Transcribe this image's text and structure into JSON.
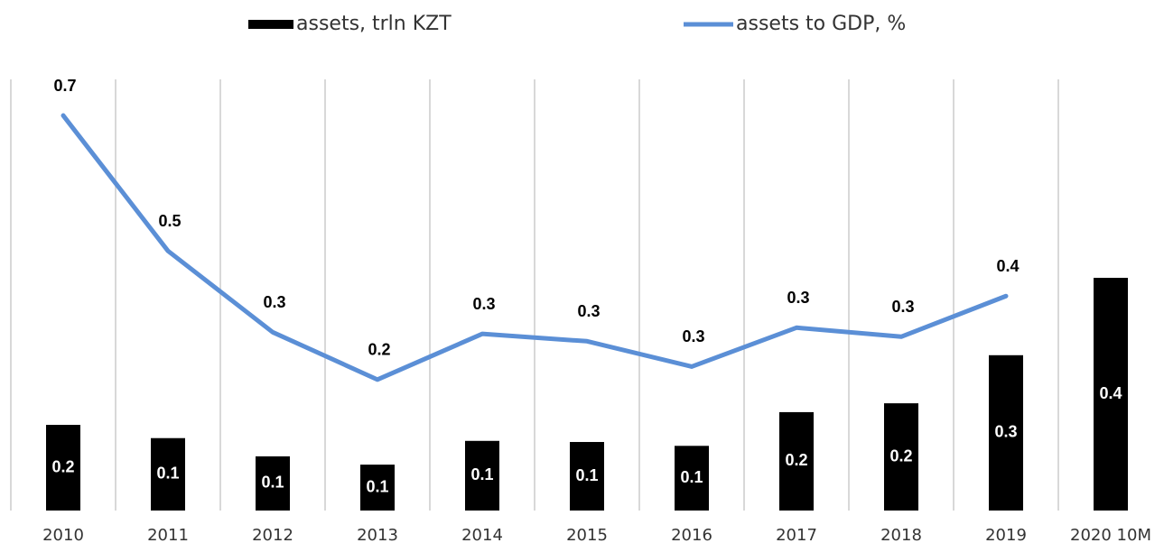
{
  "chart_data": {
    "type": "bar_line",
    "categories": [
      "2010",
      "2011",
      "2012",
      "2013",
      "2014",
      "2015",
      "2016",
      "2017",
      "2018",
      "2019",
      "2020 10M"
    ],
    "series": [
      {
        "name": "assets, trln KZT",
        "type": "bar",
        "color": "#000000",
        "values": [
          0.155,
          0.131,
          0.098,
          0.083,
          0.126,
          0.124,
          0.117,
          0.178,
          0.194,
          0.281,
          0.421
        ],
        "value_labels": [
          "0.2",
          "0.1",
          "0.1",
          "0.1",
          "0.1",
          "0.1",
          "0.1",
          "0.2",
          "0.2",
          "0.3",
          "0.4"
        ]
      },
      {
        "name": "assets to GDP, %",
        "type": "line",
        "color": "#5b8fd6",
        "axis": "y2",
        "values": [
          0.7,
          0.46,
          0.316,
          0.232,
          0.313,
          0.3,
          0.255,
          0.324,
          0.308,
          0.38,
          null
        ],
        "value_labels": [
          "0.7",
          "0.5",
          "0.3",
          "0.2",
          "0.3",
          "0.3",
          "0.3",
          "0.3",
          "0.3",
          "0.4",
          null
        ]
      }
    ],
    "ylim": [
      0,
      0.78
    ],
    "y2lim": [
      0,
      0.764
    ],
    "grid": true,
    "legend": "top"
  }
}
